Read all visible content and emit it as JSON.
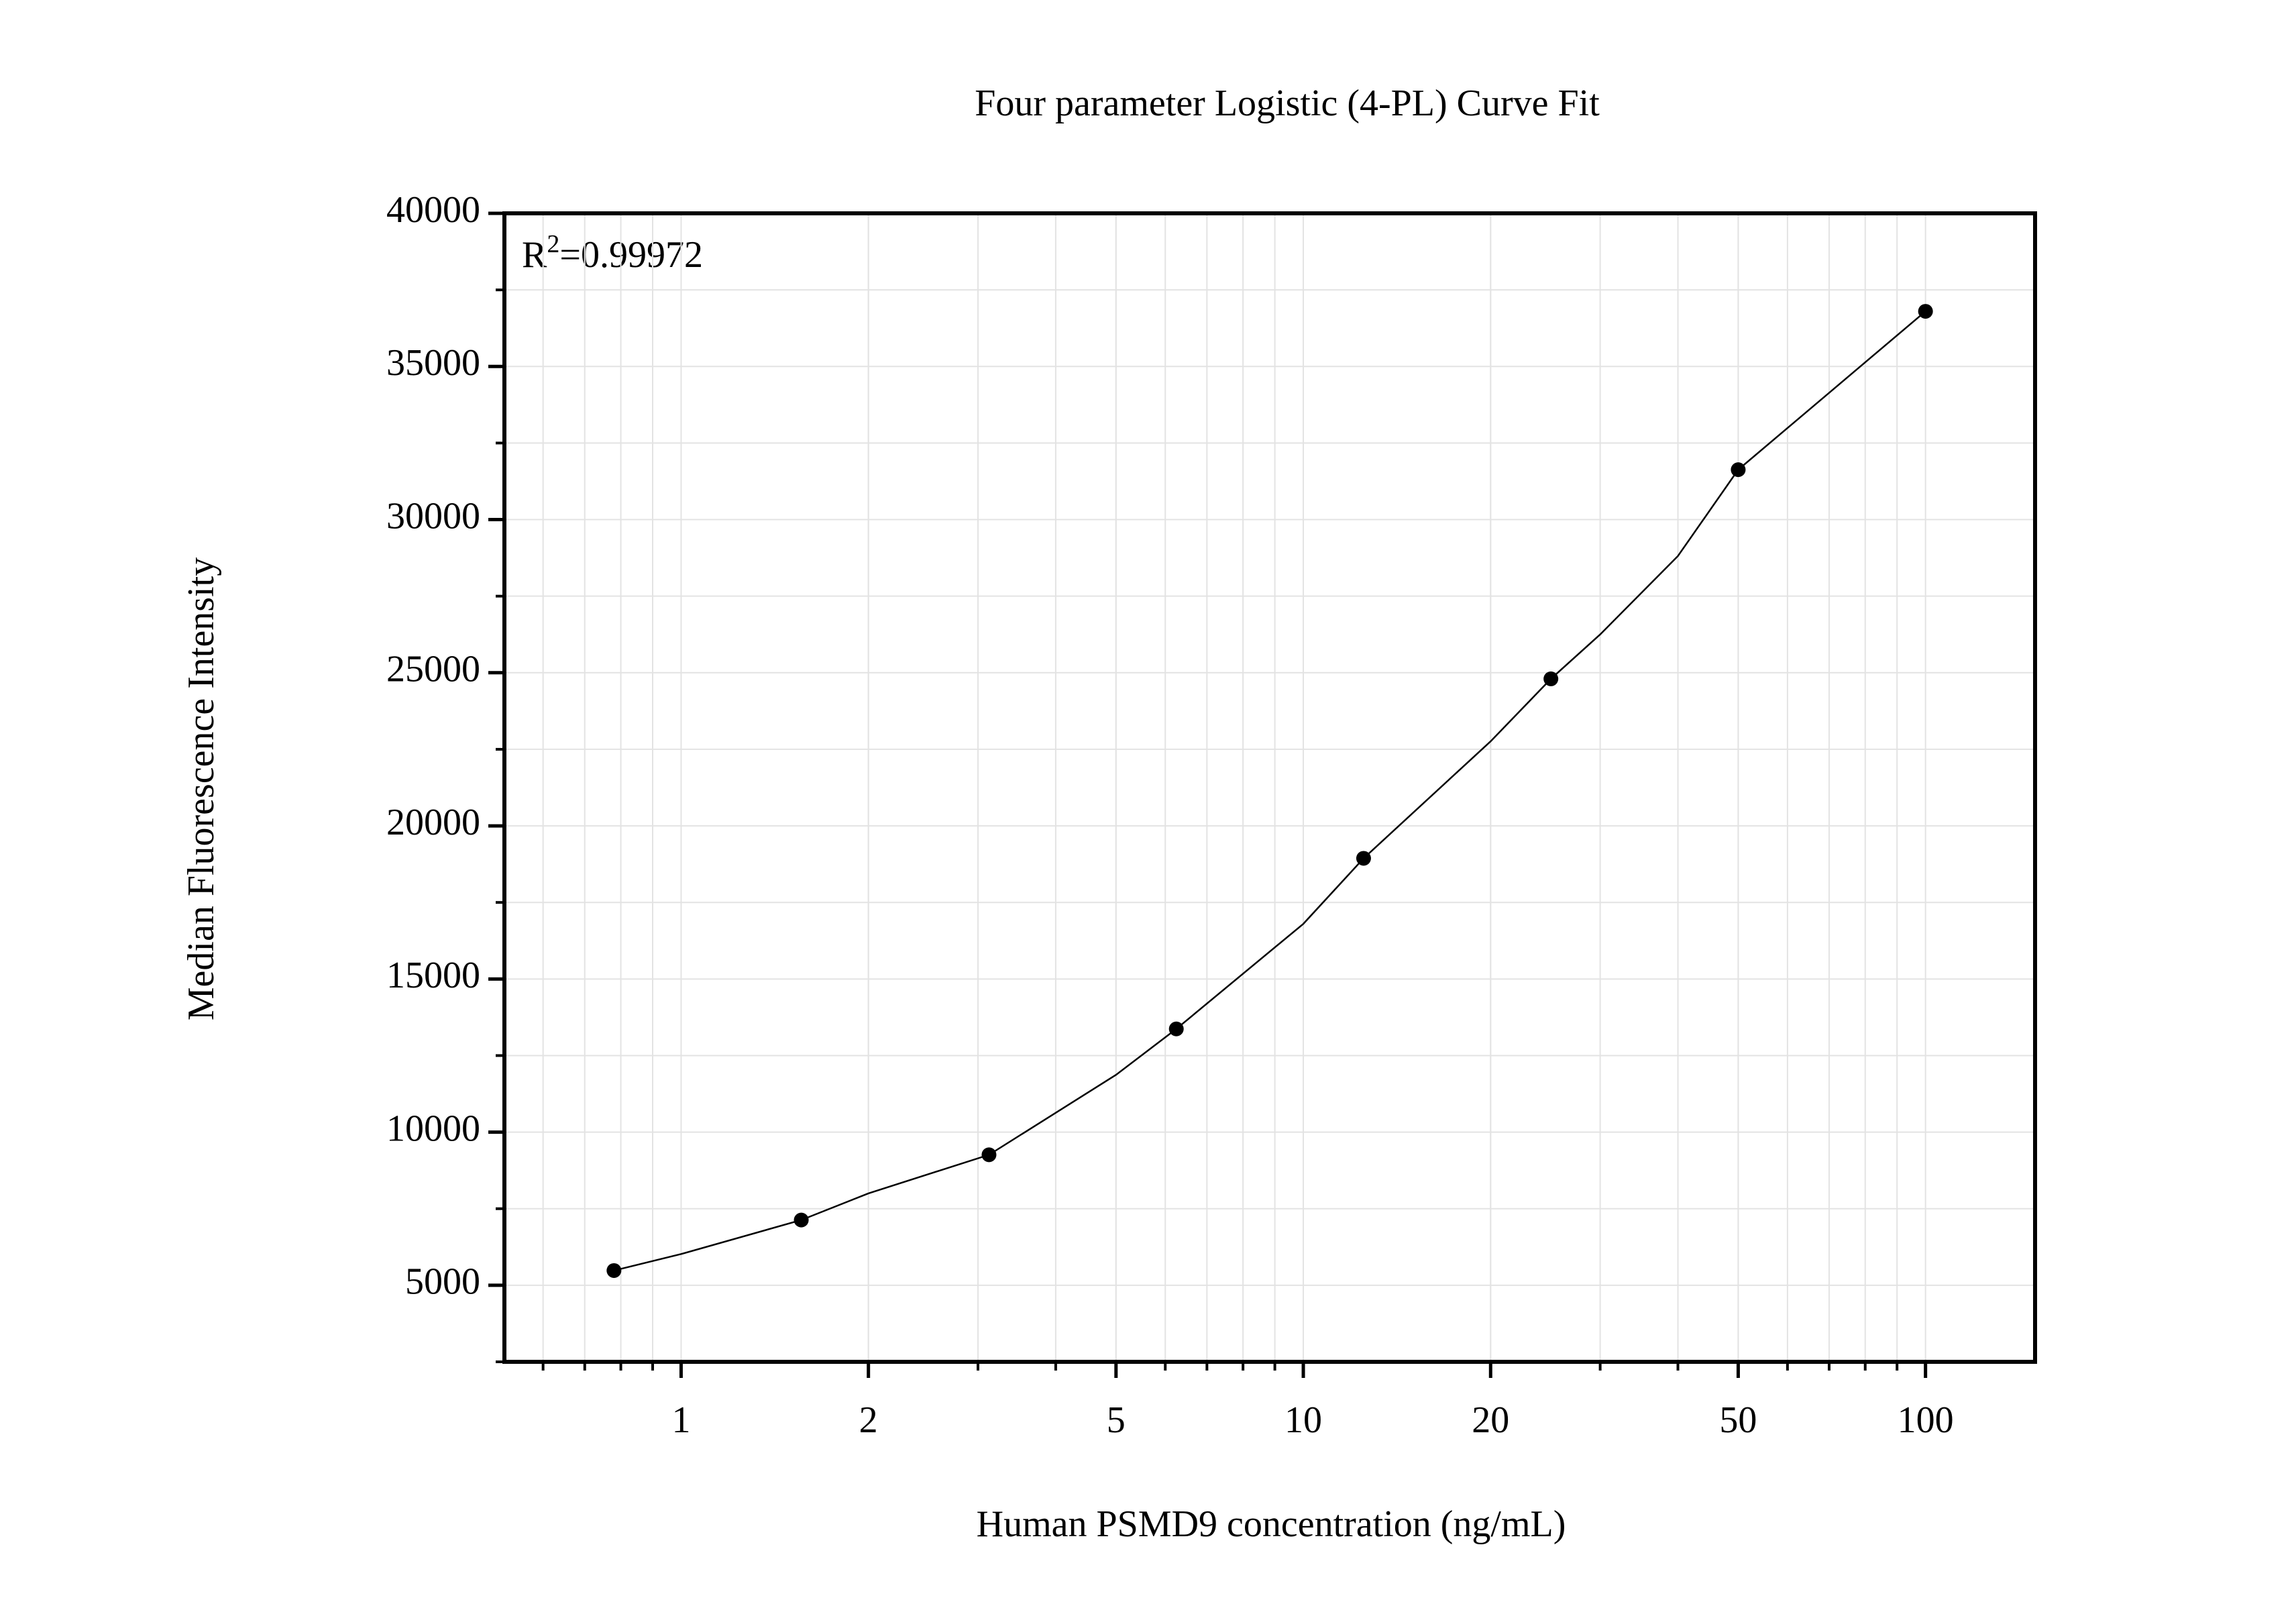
{
  "chart_data": {
    "type": "scatter",
    "title": "Four parameter Logistic (4-PL) Curve Fit",
    "xlabel": "Human PSMD9 concentration (ng/mL)",
    "ylabel": "Median Fluorescence Intensity",
    "annotation": {
      "base": "R",
      "sup": "2",
      "text": "=0.99972"
    },
    "x": [
      0.78,
      1.56,
      3.125,
      6.25,
      12.5,
      25,
      50,
      100
    ],
    "values": [
      5480,
      7130,
      9260,
      13370,
      18940,
      24800,
      31630,
      36800
    ],
    "color": "#000000",
    "fit": {
      "x": [
        0.78,
        1,
        1.56,
        2,
        3.125,
        5,
        6.25,
        10,
        12.5,
        20,
        25,
        30,
        40,
        50,
        70,
        100
      ],
      "values": [
        5480,
        6020,
        7130,
        8000,
        9260,
        11870,
        13370,
        16800,
        18940,
        22760,
        24800,
        26250,
        28810,
        31630,
        34140,
        36800
      ]
    },
    "xscale": "log",
    "xlim": [
      0.52,
      150
    ],
    "xticks": [
      1,
      2,
      5,
      10,
      20,
      50,
      100
    ],
    "ylim": [
      2500,
      40000
    ],
    "yticks": [
      5000,
      10000,
      15000,
      20000,
      25000,
      30000,
      35000,
      40000
    ],
    "grid": true,
    "minor_ticks": true
  }
}
